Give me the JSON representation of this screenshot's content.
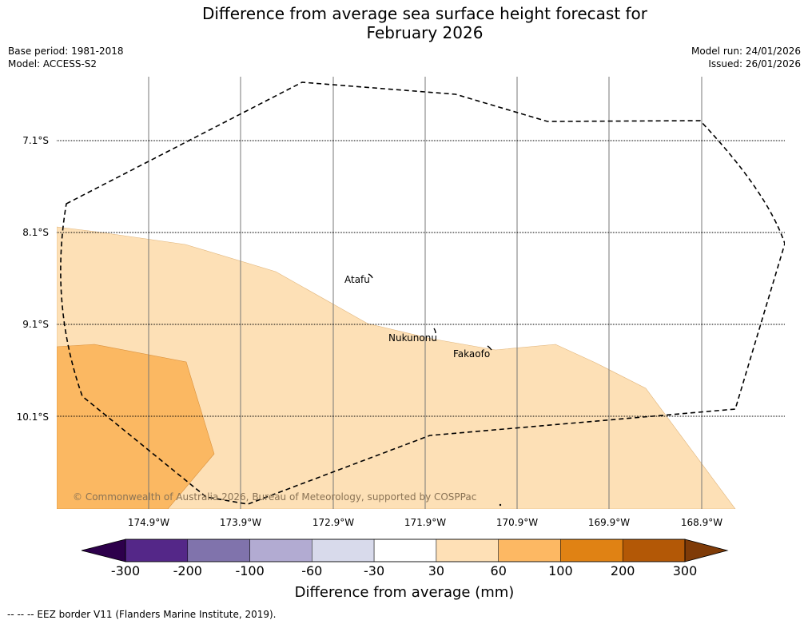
{
  "title": {
    "line1": "Difference from average sea surface height forecast for",
    "line2": "February 2026"
  },
  "meta": {
    "base_period": "Base period: 1981-2018",
    "model": "Model: ACCESS-S2",
    "model_run": "Model run: 24/01/2026",
    "issued": "Issued: 26/01/2026"
  },
  "map": {
    "latitude_labels": [
      "7.1°S",
      "8.1°S",
      "9.1°S",
      "10.1°S"
    ],
    "longitude_labels": [
      "174.9°W",
      "173.9°W",
      "172.9°W",
      "171.9°W",
      "170.9°W",
      "169.9°W",
      "168.9°W"
    ],
    "places": {
      "atafu": "Atafu",
      "nukunonu": "Nukunonu",
      "fakaofo": "Fakaofo"
    },
    "copyright": "© Commonwealth of Australia 2026, Bureau of Meteorology, supported by COSPPac",
    "fill_colors": {
      "band_30_60": "#fde0b6",
      "band_60_100": "#fbb862"
    }
  },
  "colorbar": {
    "ticks": [
      "-300",
      "-200",
      "-100",
      "-60",
      "-30",
      "30",
      "60",
      "100",
      "200",
      "300"
    ],
    "colors": [
      "#2d004b",
      "#542788",
      "#8073ac",
      "#b2abd2",
      "#d8daeb",
      "#ffffff",
      "#fee0b6",
      "#fdb863",
      "#e08214",
      "#b35806",
      "#7f3b08"
    ],
    "label": "Difference from average (mm)"
  },
  "legend_note": "--  --  -- EEZ border V11 (Flanders Marine Institute, 2019)."
}
